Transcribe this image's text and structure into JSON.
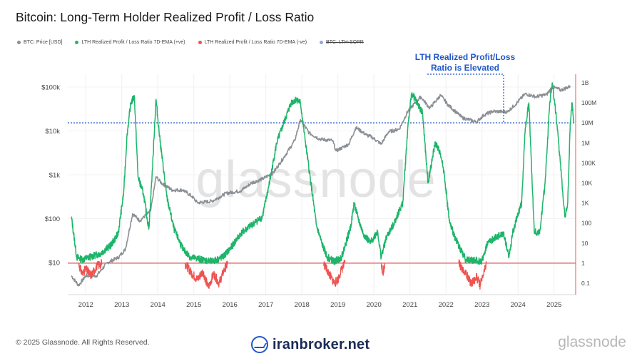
{
  "header": {
    "title": "Bitcoin: Long-Term Holder Realized Profit / Loss Ratio"
  },
  "legend": [
    {
      "label": "BTC: Price [USD]",
      "color": "#8a8f94",
      "strike": false
    },
    {
      "label": "LTH Realized Profit / Loss Ratio 7D-EMA (+ve)",
      "color": "#1db56a",
      "strike": false
    },
    {
      "label": "LTH Realized Profit / Loss Ratio 7D-EMA (-ve)",
      "color": "#ef5350",
      "strike": false
    },
    {
      "label": "BTC: LTH-SOPR",
      "color": "#8fa6e0",
      "strike": true
    }
  ],
  "annotation": {
    "line1": "LTH Realized Profit/Loss",
    "line2": "Ratio is Elevated",
    "color": "#1f56c9"
  },
  "watermark": "glassnode",
  "footer": {
    "copyright": "© 2025 Glassnode. All Rights Reserved.",
    "brand": "iranbroker.net",
    "logo": "glassnode"
  },
  "chart_data": {
    "type": "line",
    "x_ticks": [
      "2012",
      "2013",
      "2014",
      "2015",
      "2016",
      "2017",
      "2018",
      "2019",
      "2020",
      "2021",
      "2022",
      "2023",
      "2024",
      "2025"
    ],
    "y_left_ticks": [
      "$10",
      "$100",
      "$1k",
      "$10k",
      "$100k"
    ],
    "y_right_ticks": [
      "0.1",
      "1",
      "10",
      "100",
      "1K",
      "10K",
      "100K",
      "1M",
      "10M",
      "100M",
      "1B"
    ],
    "y_left_scale": "log",
    "y_right_scale": "log",
    "reference_lines": [
      {
        "axis": "right",
        "value": 1,
        "color": "#ef5350",
        "style": "solid"
      },
      {
        "axis": "right",
        "value": 10000000,
        "color": "#1f56c9",
        "style": "dotted"
      }
    ],
    "series": [
      {
        "name": "BTC: Price [USD]",
        "axis": "left",
        "color": "#8a8f94",
        "points": [
          [
            2011.6,
            5
          ],
          [
            2011.8,
            3
          ],
          [
            2012.0,
            5
          ],
          [
            2012.3,
            5
          ],
          [
            2012.6,
            10
          ],
          [
            2012.9,
            13
          ],
          [
            2013.1,
            20
          ],
          [
            2013.3,
            130
          ],
          [
            2013.5,
            90
          ],
          [
            2013.8,
            150
          ],
          [
            2013.95,
            900
          ],
          [
            2014.1,
            650
          ],
          [
            2014.4,
            450
          ],
          [
            2014.7,
            450
          ],
          [
            2014.95,
            320
          ],
          [
            2015.1,
            230
          ],
          [
            2015.5,
            250
          ],
          [
            2015.9,
            380
          ],
          [
            2016.3,
            430
          ],
          [
            2016.6,
            650
          ],
          [
            2016.9,
            800
          ],
          [
            2017.2,
            1100
          ],
          [
            2017.5,
            2500
          ],
          [
            2017.8,
            6000
          ],
          [
            2017.96,
            18000
          ],
          [
            2018.2,
            9000
          ],
          [
            2018.5,
            6500
          ],
          [
            2018.85,
            6000
          ],
          [
            2018.95,
            3500
          ],
          [
            2019.3,
            5000
          ],
          [
            2019.5,
            12000
          ],
          [
            2019.8,
            8000
          ],
          [
            2019.95,
            7200
          ],
          [
            2020.2,
            5000
          ],
          [
            2020.4,
            9500
          ],
          [
            2020.7,
            11000
          ],
          [
            2020.95,
            29000
          ],
          [
            2021.3,
            60000
          ],
          [
            2021.55,
            33000
          ],
          [
            2021.85,
            65000
          ],
          [
            2022.05,
            40000
          ],
          [
            2022.45,
            20000
          ],
          [
            2022.85,
            16000
          ],
          [
            2023.05,
            23000
          ],
          [
            2023.3,
            28000
          ],
          [
            2023.7,
            27000
          ],
          [
            2023.95,
            42000
          ],
          [
            2024.2,
            70000
          ],
          [
            2024.5,
            60000
          ],
          [
            2024.8,
            68000
          ],
          [
            2024.95,
            100000
          ],
          [
            2025.2,
            85000
          ],
          [
            2025.45,
            105000
          ]
        ]
      },
      {
        "name": "LTH Realized Profit / Loss Ratio 7D-EMA (+ve)",
        "axis": "right",
        "color": "#1db56a",
        "points": [
          [
            2011.6,
            200
          ],
          [
            2011.75,
            2
          ],
          [
            2011.9,
            1.5
          ],
          [
            2012.1,
            2
          ],
          [
            2012.4,
            3
          ],
          [
            2012.7,
            8
          ],
          [
            2012.9,
            30
          ],
          [
            2013.05,
            3000
          ],
          [
            2013.15,
            3000000
          ],
          [
            2013.25,
            100000000
          ],
          [
            2013.35,
            200000000
          ],
          [
            2013.45,
            20000
          ],
          [
            2013.6,
            3000
          ],
          [
            2013.75,
            50
          ],
          [
            2013.85,
            50000
          ],
          [
            2013.95,
            150000000
          ],
          [
            2014.05,
            2000000
          ],
          [
            2014.25,
            2000
          ],
          [
            2014.45,
            50
          ],
          [
            2014.7,
            5
          ],
          [
            2014.9,
            2
          ],
          [
            2015.5,
            1.2
          ],
          [
            2015.8,
            2
          ],
          [
            2016.0,
            5
          ],
          [
            2016.3,
            30
          ],
          [
            2016.6,
            80
          ],
          [
            2016.9,
            200
          ],
          [
            2017.1,
            10000
          ],
          [
            2017.3,
            1000000
          ],
          [
            2017.5,
            10000000
          ],
          [
            2017.7,
            100000000
          ],
          [
            2017.85,
            150000000
          ],
          [
            2017.96,
            100000000
          ],
          [
            2018.1,
            1000000
          ],
          [
            2018.25,
            10000
          ],
          [
            2018.4,
            80
          ],
          [
            2018.55,
            10
          ],
          [
            2018.7,
            2
          ],
          [
            2018.9,
            1.2
          ],
          [
            2019.1,
            2
          ],
          [
            2019.35,
            60
          ],
          [
            2019.45,
            1000
          ],
          [
            2019.55,
            200
          ],
          [
            2019.7,
            30
          ],
          [
            2019.9,
            10
          ],
          [
            2020.1,
            40
          ],
          [
            2020.2,
            2
          ],
          [
            2020.35,
            20
          ],
          [
            2020.5,
            60
          ],
          [
            2020.8,
            1000
          ],
          [
            2020.95,
            10000000
          ],
          [
            2021.05,
            300000000
          ],
          [
            2021.2,
            100000000
          ],
          [
            2021.35,
            30000000
          ],
          [
            2021.5,
            10000
          ],
          [
            2021.7,
            1000000
          ],
          [
            2021.85,
            300000
          ],
          [
            2021.95,
            30000
          ],
          [
            2022.1,
            100
          ],
          [
            2022.25,
            20
          ],
          [
            2022.4,
            5
          ],
          [
            2022.55,
            1.5
          ],
          [
            2023.0,
            1.3
          ],
          [
            2023.15,
            10
          ],
          [
            2023.4,
            20
          ],
          [
            2023.6,
            30
          ],
          [
            2023.75,
            2
          ],
          [
            2023.85,
            30
          ],
          [
            2024.0,
            300
          ],
          [
            2024.1,
            1000
          ],
          [
            2024.2,
            5000000
          ],
          [
            2024.3,
            100000000
          ],
          [
            2024.45,
            40
          ],
          [
            2024.6,
            30
          ],
          [
            2024.75,
            10000
          ],
          [
            2024.88,
            100000000
          ],
          [
            2024.95,
            1000000000
          ],
          [
            2025.05,
            30000000
          ],
          [
            2025.2,
            30000
          ],
          [
            2025.3,
            200
          ],
          [
            2025.38,
            1000
          ],
          [
            2025.45,
            10000000
          ],
          [
            2025.5,
            100000000
          ],
          [
            2025.55,
            10000000
          ]
        ]
      },
      {
        "name": "LTH Realized Profit / Loss Ratio 7D-EMA (-ve)",
        "axis": "right",
        "color": "#ef5350",
        "segments": [
          [
            [
              2011.8,
              1
            ],
            [
              2011.9,
              0.3
            ],
            [
              2012.0,
              0.5
            ],
            [
              2012.15,
              0.25
            ],
            [
              2012.3,
              0.7
            ],
            [
              2012.45,
              1
            ]
          ],
          [
            [
              2014.75,
              1
            ],
            [
              2014.95,
              0.3
            ],
            [
              2015.1,
              0.15
            ],
            [
              2015.25,
              0.4
            ],
            [
              2015.4,
              0.06
            ],
            [
              2015.55,
              0.3
            ],
            [
              2015.7,
              0.1
            ],
            [
              2015.85,
              0.5
            ],
            [
              2015.95,
              1
            ]
          ],
          [
            [
              2018.6,
              1
            ],
            [
              2018.75,
              0.3
            ],
            [
              2018.9,
              0.1
            ],
            [
              2019.0,
              0.15
            ],
            [
              2019.1,
              0.5
            ],
            [
              2019.2,
              1
            ]
          ],
          [
            [
              2020.2,
              1
            ],
            [
              2020.25,
              0.3
            ],
            [
              2020.3,
              1
            ]
          ],
          [
            [
              2022.35,
              1
            ],
            [
              2022.55,
              0.3
            ],
            [
              2022.7,
              0.1
            ],
            [
              2022.85,
              0.2
            ],
            [
              2022.95,
              0.08
            ],
            [
              2023.05,
              0.3
            ],
            [
              2023.12,
              1
            ]
          ]
        ]
      }
    ]
  }
}
